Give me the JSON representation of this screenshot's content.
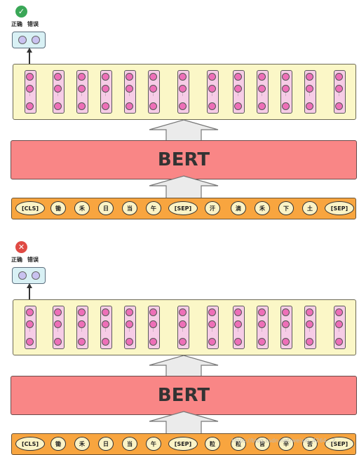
{
  "panels": [
    {
      "status": "correct",
      "status_symbol": "✓",
      "status_color": "#3aa757",
      "class_labels": [
        "正确",
        "错误"
      ],
      "model_label": "BERT",
      "tokens": [
        "[CLS]",
        "锄",
        "禾",
        "日",
        "当",
        "午",
        "[SEP]",
        "汗",
        "滴",
        "禾",
        "下",
        "土",
        "[SEP]"
      ]
    },
    {
      "status": "wrong",
      "status_symbol": "✕",
      "status_color": "#e04a44",
      "class_labels": [
        "正确",
        "错误"
      ],
      "model_label": "BERT",
      "tokens": [
        "[CLS]",
        "锄",
        "禾",
        "日",
        "当",
        "午",
        "[SEP]",
        "粒",
        "粒",
        "皆",
        "辛",
        "苦",
        "[SEP]"
      ]
    }
  ],
  "watermark": "https://blog.csdn.net/weixin_4264...2"
}
